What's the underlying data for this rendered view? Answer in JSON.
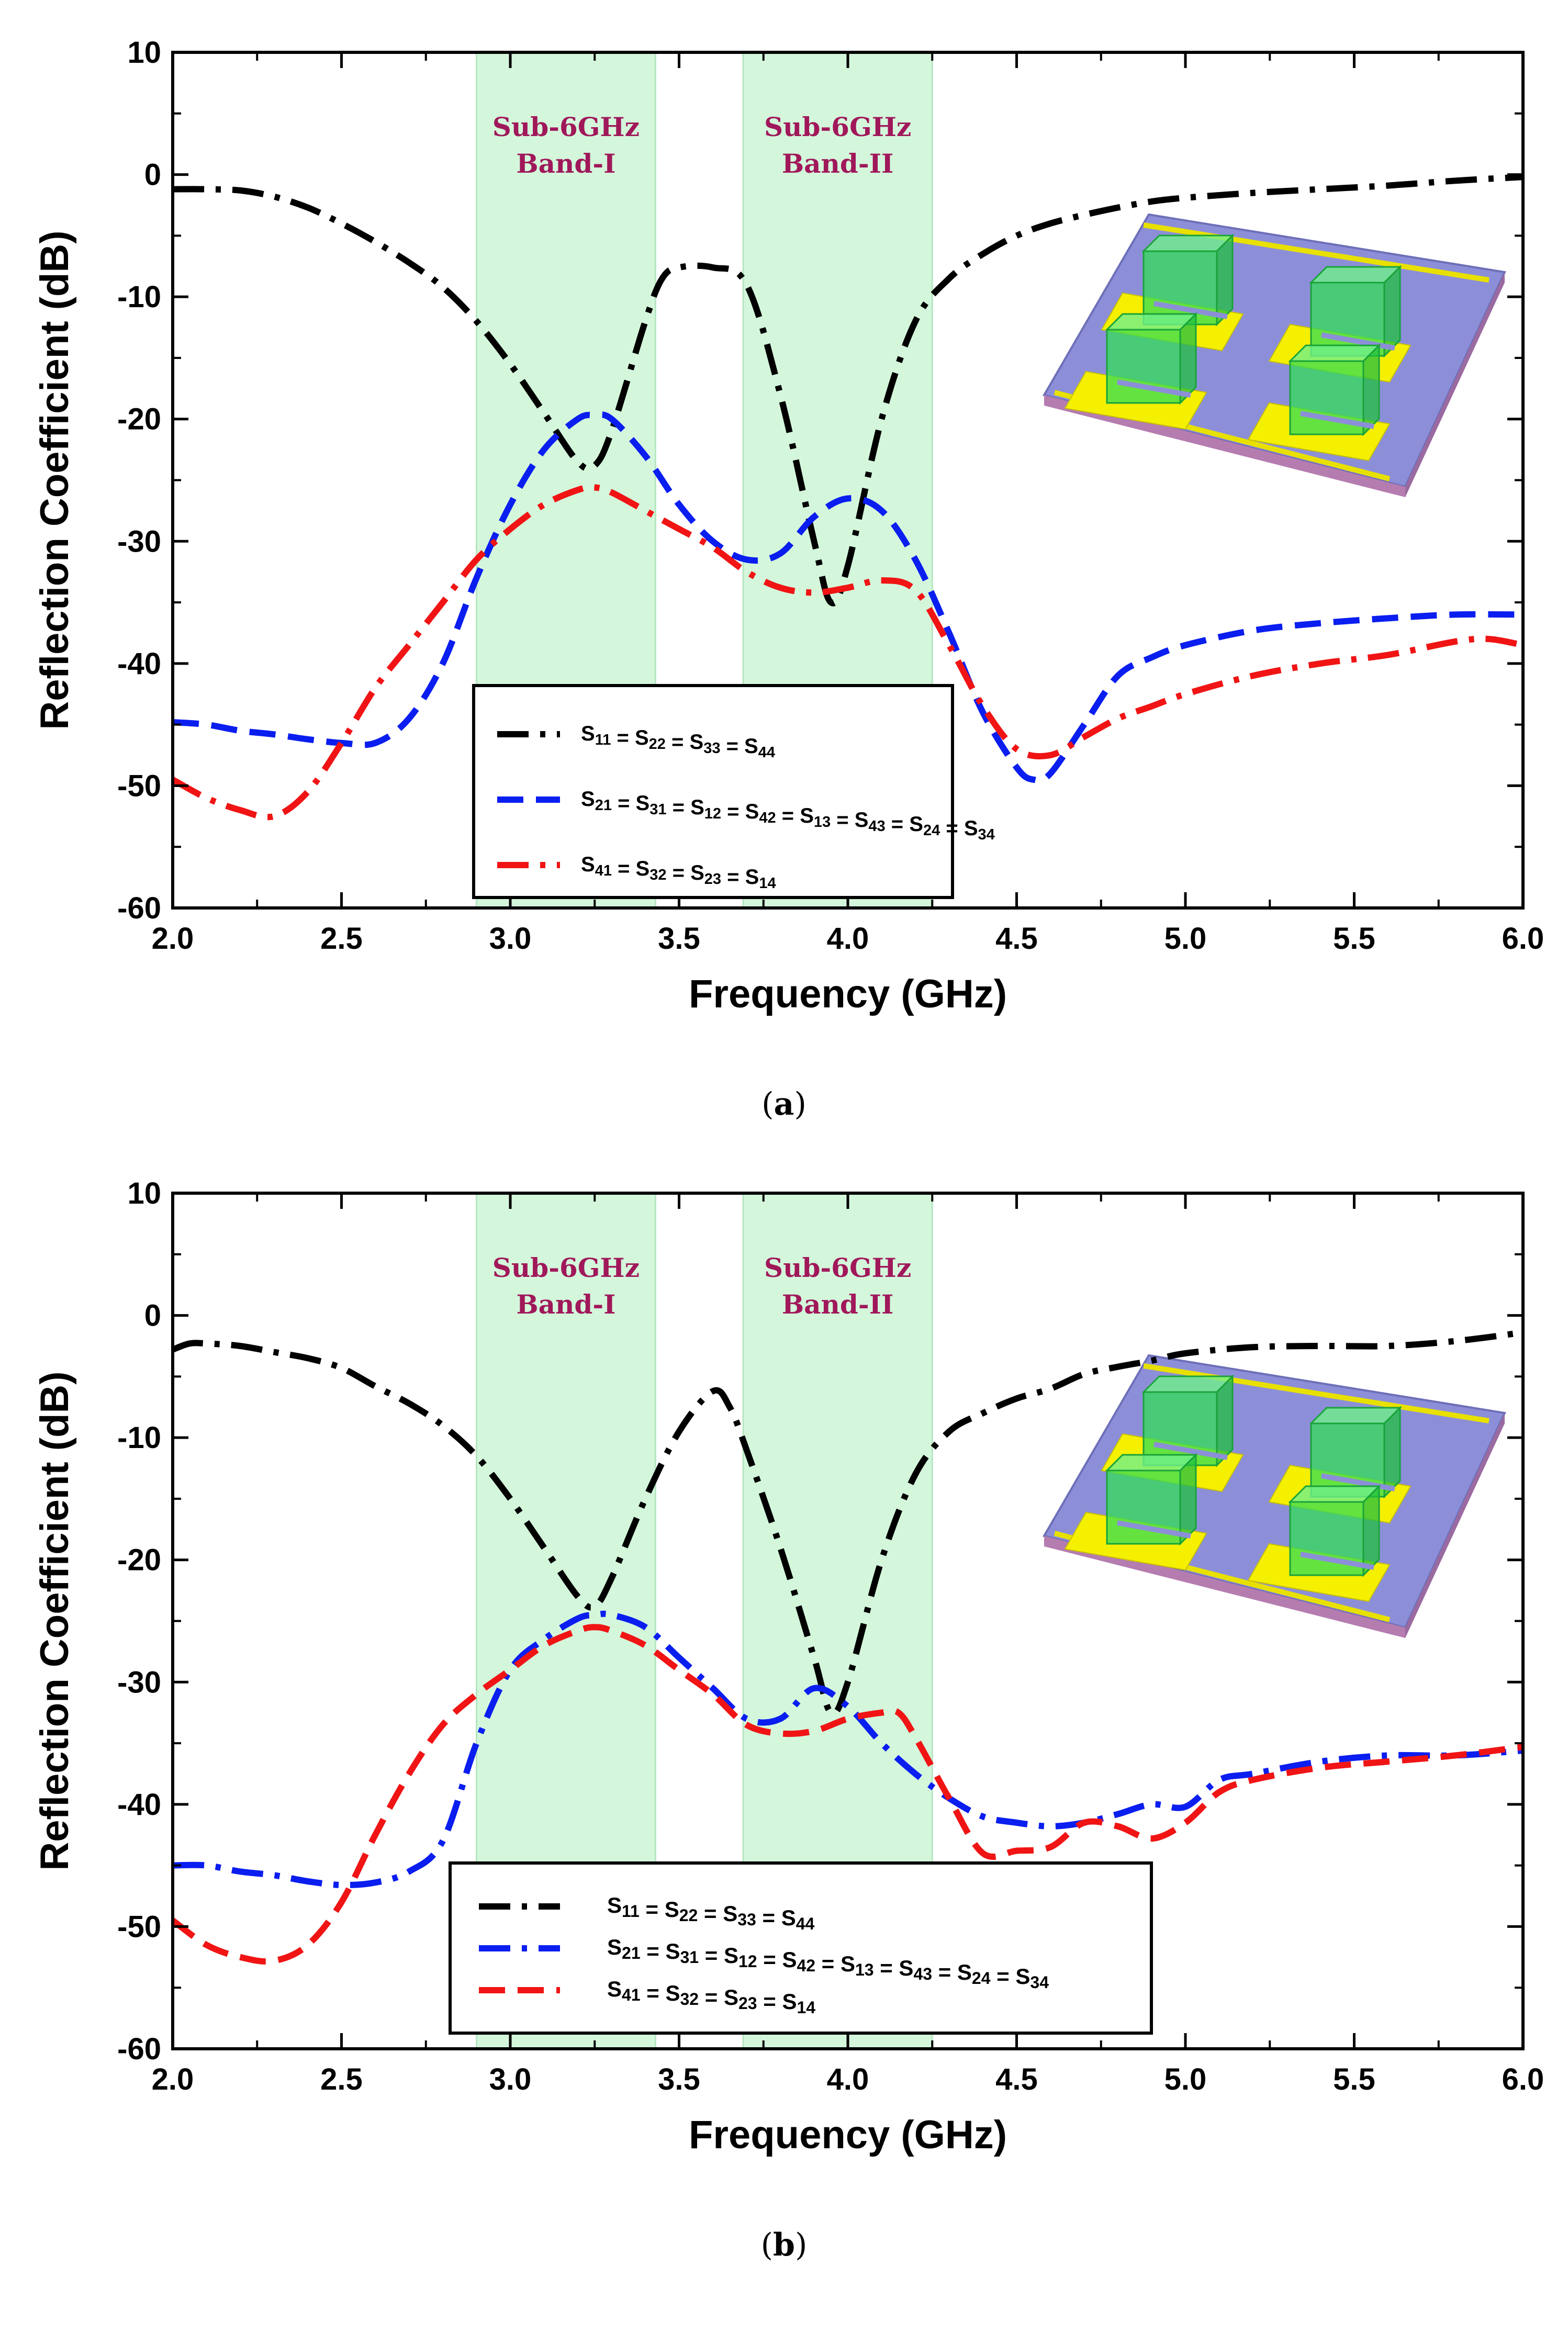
{
  "chart_data": [
    {
      "type": "line",
      "caption": "(a)",
      "xlabel": "Frequency (GHz)",
      "ylabel": "Reflection Coefficient (dB)",
      "xlim": [
        2.0,
        6.0
      ],
      "ylim": [
        -60,
        10
      ],
      "xticks": [
        "2.0",
        "2.5",
        "3.0",
        "3.5",
        "4.0",
        "4.5",
        "5.0",
        "5.5",
        "6.0"
      ],
      "yticks": [
        "10",
        "0",
        "-10",
        "-20",
        "-30",
        "-40",
        "-50",
        "-60"
      ],
      "bands": [
        {
          "label_line1": "Sub-6GHz",
          "label_line2": "Band-I",
          "x0": 2.9,
          "x1": 3.43,
          "color": "#d4f7dc"
        },
        {
          "label_line1": "Sub-6GHz",
          "label_line2": "Band-II",
          "x0": 3.69,
          "x1": 4.25,
          "color": "#d4f7dc"
        }
      ],
      "series": [
        {
          "name": "S11 = S22 = S33 = S44",
          "color": "#000000",
          "dash": "dashdot",
          "points": [
            [
              2.0,
              -1.2
            ],
            [
              2.1,
              -1.2
            ],
            [
              2.2,
              -1.3
            ],
            [
              2.3,
              -1.8
            ],
            [
              2.4,
              -2.7
            ],
            [
              2.5,
              -4.0
            ],
            [
              2.6,
              -5.5
            ],
            [
              2.7,
              -7.2
            ],
            [
              2.8,
              -9.2
            ],
            [
              2.9,
              -12.0
            ],
            [
              3.0,
              -15.5
            ],
            [
              3.1,
              -19.5
            ],
            [
              3.2,
              -23.5
            ],
            [
              3.25,
              -23.8
            ],
            [
              3.3,
              -21.0
            ],
            [
              3.4,
              -12.0
            ],
            [
              3.45,
              -8.5
            ],
            [
              3.5,
              -7.6
            ],
            [
              3.6,
              -7.6
            ],
            [
              3.7,
              -9.0
            ],
            [
              3.8,
              -18.0
            ],
            [
              3.9,
              -30.0
            ],
            [
              3.95,
              -35.0
            ],
            [
              4.0,
              -32.0
            ],
            [
              4.1,
              -20.0
            ],
            [
              4.2,
              -12.0
            ],
            [
              4.3,
              -8.5
            ],
            [
              4.4,
              -6.5
            ],
            [
              4.5,
              -5.0
            ],
            [
              4.6,
              -4.0
            ],
            [
              4.7,
              -3.3
            ],
            [
              4.8,
              -2.7
            ],
            [
              4.9,
              -2.2
            ],
            [
              5.0,
              -1.9
            ],
            [
              5.2,
              -1.5
            ],
            [
              5.4,
              -1.2
            ],
            [
              5.6,
              -0.9
            ],
            [
              5.8,
              -0.5
            ],
            [
              6.0,
              -0.2
            ]
          ]
        },
        {
          "name": "S21 = S31 = S12 = S42 = S13 = S43 = S24 = S34",
          "color": "#0a1ef0",
          "dash": "dash",
          "points": [
            [
              2.0,
              -44.8
            ],
            [
              2.1,
              -45.0
            ],
            [
              2.2,
              -45.5
            ],
            [
              2.3,
              -45.8
            ],
            [
              2.4,
              -46.2
            ],
            [
              2.5,
              -46.5
            ],
            [
              2.6,
              -46.5
            ],
            [
              2.7,
              -44.5
            ],
            [
              2.8,
              -40.0
            ],
            [
              2.9,
              -33.0
            ],
            [
              3.0,
              -27.0
            ],
            [
              3.1,
              -22.5
            ],
            [
              3.2,
              -20.0
            ],
            [
              3.25,
              -19.7
            ],
            [
              3.3,
              -20.0
            ],
            [
              3.4,
              -23.0
            ],
            [
              3.5,
              -27.0
            ],
            [
              3.6,
              -30.0
            ],
            [
              3.7,
              -31.5
            ],
            [
              3.8,
              -31.0
            ],
            [
              3.9,
              -28.0
            ],
            [
              4.0,
              -26.5
            ],
            [
              4.1,
              -27.5
            ],
            [
              4.2,
              -31.5
            ],
            [
              4.3,
              -37.5
            ],
            [
              4.4,
              -44.0
            ],
            [
              4.5,
              -48.5
            ],
            [
              4.55,
              -49.5
            ],
            [
              4.6,
              -49.0
            ],
            [
              4.7,
              -45.0
            ],
            [
              4.8,
              -41.0
            ],
            [
              4.9,
              -39.5
            ],
            [
              5.0,
              -38.5
            ],
            [
              5.2,
              -37.3
            ],
            [
              5.4,
              -36.7
            ],
            [
              5.6,
              -36.3
            ],
            [
              5.8,
              -36.0
            ],
            [
              6.0,
              -36.0
            ]
          ]
        },
        {
          "name": "S41 = S32 = S23 = S14",
          "color": "#f01414",
          "dash": "dashdot",
          "points": [
            [
              2.0,
              -49.5
            ],
            [
              2.1,
              -51.0
            ],
            [
              2.2,
              -52.0
            ],
            [
              2.3,
              -52.5
            ],
            [
              2.4,
              -50.5
            ],
            [
              2.5,
              -46.5
            ],
            [
              2.6,
              -42.0
            ],
            [
              2.7,
              -38.5
            ],
            [
              2.8,
              -35.0
            ],
            [
              2.9,
              -31.5
            ],
            [
              3.0,
              -29.0
            ],
            [
              3.1,
              -27.0
            ],
            [
              3.2,
              -25.8
            ],
            [
              3.25,
              -25.6
            ],
            [
              3.3,
              -26.0
            ],
            [
              3.4,
              -27.5
            ],
            [
              3.5,
              -29.0
            ],
            [
              3.6,
              -30.5
            ],
            [
              3.7,
              -32.5
            ],
            [
              3.8,
              -33.8
            ],
            [
              3.9,
              -34.2
            ],
            [
              4.0,
              -33.8
            ],
            [
              4.1,
              -33.2
            ],
            [
              4.2,
              -34.0
            ],
            [
              4.3,
              -38.5
            ],
            [
              4.4,
              -43.5
            ],
            [
              4.5,
              -47.0
            ],
            [
              4.6,
              -47.5
            ],
            [
              4.7,
              -46.0
            ],
            [
              4.8,
              -44.5
            ],
            [
              4.9,
              -43.5
            ],
            [
              5.0,
              -42.5
            ],
            [
              5.2,
              -41.0
            ],
            [
              5.4,
              -40.0
            ],
            [
              5.6,
              -39.3
            ],
            [
              5.8,
              -38.2
            ],
            [
              5.9,
              -38.0
            ],
            [
              6.0,
              -38.5
            ]
          ]
        }
      ],
      "legend": [
        {
          "label": "S11 = S22 = S33 = S44",
          "color": "#000000",
          "dash": "dashdot"
        },
        {
          "label": "S21 = S31 = S12 = S42 = S13 = S43 = S24 = S34",
          "color": "#0a1ef0",
          "dash": "dash"
        },
        {
          "label": "S41 = S32 = S23 = S14",
          "color": "#f01414",
          "dash": "dashdot"
        }
      ]
    },
    {
      "type": "line",
      "caption": "(b)",
      "xlabel": "Frequency (GHz)",
      "ylabel": "Reflection Coefficient (dB)",
      "xlim": [
        2.0,
        6.0
      ],
      "ylim": [
        -60,
        10
      ],
      "xticks": [
        "2.0",
        "2.5",
        "3.0",
        "3.5",
        "4.0",
        "4.5",
        "5.0",
        "5.5",
        "6.0"
      ],
      "yticks": [
        "10",
        "0",
        "-10",
        "-20",
        "-30",
        "-40",
        "-50",
        "-60"
      ],
      "bands": [
        {
          "label_line1": "Sub-6GHz",
          "label_line2": "Band-I",
          "x0": 2.9,
          "x1": 3.43,
          "color": "#d4f7dc"
        },
        {
          "label_line1": "Sub-6GHz",
          "label_line2": "Band-II",
          "x0": 3.69,
          "x1": 4.25,
          "color": "#d4f7dc"
        }
      ],
      "series": [
        {
          "name": "S11 = S22 = S33 = S44",
          "color": "#000000",
          "dash": "dashdot",
          "points": [
            [
              2.0,
              -2.8
            ],
            [
              2.05,
              -2.3
            ],
            [
              2.1,
              -2.3
            ],
            [
              2.2,
              -2.5
            ],
            [
              2.3,
              -3.0
            ],
            [
              2.4,
              -3.5
            ],
            [
              2.5,
              -4.3
            ],
            [
              2.6,
              -5.8
            ],
            [
              2.7,
              -7.2
            ],
            [
              2.8,
              -9.0
            ],
            [
              2.9,
              -11.5
            ],
            [
              3.0,
              -15.0
            ],
            [
              3.1,
              -19.0
            ],
            [
              3.2,
              -23.0
            ],
            [
              3.25,
              -23.8
            ],
            [
              3.3,
              -21.5
            ],
            [
              3.4,
              -15.0
            ],
            [
              3.5,
              -9.5
            ],
            [
              3.6,
              -6.2
            ],
            [
              3.65,
              -7.5
            ],
            [
              3.7,
              -11.0
            ],
            [
              3.8,
              -19.0
            ],
            [
              3.9,
              -28.0
            ],
            [
              3.95,
              -32.5
            ],
            [
              4.0,
              -30.0
            ],
            [
              4.1,
              -20.0
            ],
            [
              4.2,
              -13.0
            ],
            [
              4.3,
              -9.5
            ],
            [
              4.4,
              -8.0
            ],
            [
              4.5,
              -6.8
            ],
            [
              4.6,
              -6.0
            ],
            [
              4.7,
              -4.8
            ],
            [
              4.8,
              -4.2
            ],
            [
              4.9,
              -3.7
            ],
            [
              5.0,
              -3.1
            ],
            [
              5.2,
              -2.6
            ],
            [
              5.4,
              -2.5
            ],
            [
              5.6,
              -2.5
            ],
            [
              5.8,
              -2.1
            ],
            [
              6.0,
              -1.4
            ]
          ]
        },
        {
          "name": "S21 = S31 = S12 = S42 = S13 = S43 = S24 = S34",
          "color": "#0a1ef0",
          "dash": "dashdot",
          "points": [
            [
              2.0,
              -45.0
            ],
            [
              2.1,
              -45.0
            ],
            [
              2.2,
              -45.5
            ],
            [
              2.3,
              -45.8
            ],
            [
              2.4,
              -46.3
            ],
            [
              2.5,
              -46.6
            ],
            [
              2.6,
              -46.4
            ],
            [
              2.7,
              -45.5
            ],
            [
              2.8,
              -43.0
            ],
            [
              2.9,
              -35.0
            ],
            [
              3.0,
              -29.0
            ],
            [
              3.1,
              -26.5
            ],
            [
              3.2,
              -24.8
            ],
            [
              3.25,
              -24.5
            ],
            [
              3.3,
              -24.5
            ],
            [
              3.4,
              -25.5
            ],
            [
              3.5,
              -28.0
            ],
            [
              3.6,
              -30.5
            ],
            [
              3.7,
              -33.0
            ],
            [
              3.8,
              -33.0
            ],
            [
              3.9,
              -30.5
            ],
            [
              4.0,
              -32.0
            ],
            [
              4.1,
              -35.0
            ],
            [
              4.2,
              -37.5
            ],
            [
              4.3,
              -39.5
            ],
            [
              4.4,
              -41.0
            ],
            [
              4.5,
              -41.5
            ],
            [
              4.6,
              -41.8
            ],
            [
              4.7,
              -41.5
            ],
            [
              4.8,
              -40.8
            ],
            [
              4.9,
              -40.0
            ],
            [
              5.0,
              -40.2
            ],
            [
              5.1,
              -38.0
            ],
            [
              5.2,
              -37.5
            ],
            [
              5.4,
              -36.5
            ],
            [
              5.6,
              -36.0
            ],
            [
              5.8,
              -36.0
            ],
            [
              6.0,
              -35.6
            ]
          ]
        },
        {
          "name": "S41 = S32 = S23 = S14",
          "color": "#f01414",
          "dash": "dash",
          "points": [
            [
              2.0,
              -49.5
            ],
            [
              2.1,
              -51.5
            ],
            [
              2.2,
              -52.5
            ],
            [
              2.3,
              -52.8
            ],
            [
              2.4,
              -51.5
            ],
            [
              2.5,
              -48.0
            ],
            [
              2.6,
              -42.5
            ],
            [
              2.7,
              -37.5
            ],
            [
              2.8,
              -33.5
            ],
            [
              2.9,
              -31.0
            ],
            [
              3.0,
              -29.0
            ],
            [
              3.1,
              -27.0
            ],
            [
              3.2,
              -25.8
            ],
            [
              3.25,
              -25.5
            ],
            [
              3.3,
              -25.8
            ],
            [
              3.4,
              -27.0
            ],
            [
              3.5,
              -29.0
            ],
            [
              3.6,
              -31.0
            ],
            [
              3.7,
              -33.5
            ],
            [
              3.8,
              -34.2
            ],
            [
              3.9,
              -34.0
            ],
            [
              4.0,
              -33.0
            ],
            [
              4.1,
              -32.5
            ],
            [
              4.15,
              -32.5
            ],
            [
              4.2,
              -34.5
            ],
            [
              4.3,
              -39.5
            ],
            [
              4.4,
              -44.0
            ],
            [
              4.5,
              -43.8
            ],
            [
              4.6,
              -43.5
            ],
            [
              4.7,
              -41.5
            ],
            [
              4.8,
              -41.8
            ],
            [
              4.9,
              -42.8
            ],
            [
              5.0,
              -41.5
            ],
            [
              5.1,
              -39.0
            ],
            [
              5.2,
              -38.0
            ],
            [
              5.4,
              -37.0
            ],
            [
              5.6,
              -36.5
            ],
            [
              5.8,
              -36.0
            ],
            [
              6.0,
              -35.3
            ]
          ]
        }
      ],
      "legend": [
        {
          "label": "S11 = S22 = S33 = S44",
          "color": "#000000",
          "dash": "dashdot"
        },
        {
          "label": "S21 = S31 = S12 = S42 =  S13 = S43 = S24 = S34",
          "color": "#0a1ef0",
          "dash": "dashdot"
        },
        {
          "label": "S41 = S32 = S23 = S14",
          "color": "#f01414",
          "dash": "dash"
        }
      ]
    }
  ]
}
